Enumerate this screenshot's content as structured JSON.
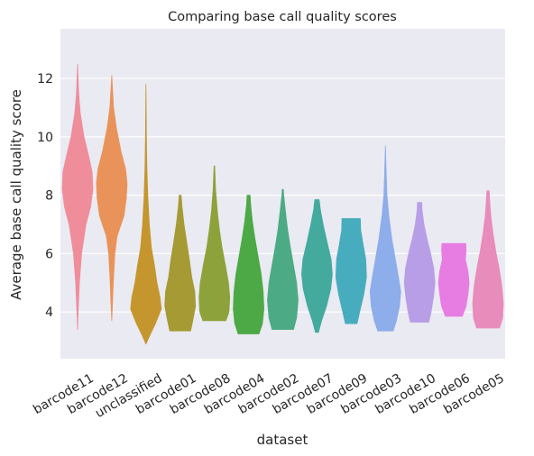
{
  "chart_data": {
    "type": "violin",
    "title": "Comparing base call quality scores",
    "xlabel": "dataset",
    "ylabel": "Average base call quality score",
    "ylim": [
      2.4,
      13.7
    ],
    "yticks": [
      4,
      6,
      8,
      10,
      12
    ],
    "grid": true,
    "categories": [
      "barcode11",
      "barcode12",
      "unclassified",
      "barcode01",
      "barcode08",
      "barcode04",
      "barcode02",
      "barcode07",
      "barcode09",
      "barcode03",
      "barcode10",
      "barcode06",
      "barcode05"
    ],
    "colors": [
      "#ef8d9b",
      "#e9935a",
      "#c4962d",
      "#a59a33",
      "#8da23a",
      "#4ca946",
      "#4cab84",
      "#44aa9e",
      "#47acbd",
      "#8dadeb",
      "#b89ee7",
      "#e77de3",
      "#e88cbb"
    ],
    "series": [
      {
        "min": 3.4,
        "max": 12.5,
        "profile": [
          [
            3.4,
            0.0
          ],
          [
            4.0,
            0.04
          ],
          [
            5.0,
            0.12
          ],
          [
            6.0,
            0.26
          ],
          [
            7.0,
            0.55
          ],
          [
            7.6,
            0.85
          ],
          [
            8.2,
            1.0
          ],
          [
            8.8,
            0.95
          ],
          [
            9.4,
            0.7
          ],
          [
            10.0,
            0.42
          ],
          [
            10.8,
            0.18
          ],
          [
            11.5,
            0.07
          ],
          [
            12.5,
            0.0
          ]
        ]
      },
      {
        "min": 3.7,
        "max": 12.1,
        "profile": [
          [
            3.7,
            0.0
          ],
          [
            4.3,
            0.05
          ],
          [
            5.0,
            0.1
          ],
          [
            6.0,
            0.2
          ],
          [
            6.6,
            0.35
          ],
          [
            7.3,
            0.8
          ],
          [
            7.9,
            0.95
          ],
          [
            8.4,
            1.0
          ],
          [
            8.9,
            0.9
          ],
          [
            9.5,
            0.6
          ],
          [
            10.3,
            0.3
          ],
          [
            11.0,
            0.12
          ],
          [
            12.1,
            0.0
          ]
        ]
      },
      {
        "min": 2.9,
        "max": 11.8,
        "profile": [
          [
            2.9,
            0.0
          ],
          [
            3.2,
            0.25
          ],
          [
            3.6,
            0.62
          ],
          [
            4.1,
            1.0
          ],
          [
            4.5,
            0.92
          ],
          [
            5.0,
            0.72
          ],
          [
            5.6,
            0.55
          ],
          [
            6.2,
            0.35
          ],
          [
            7.0,
            0.22
          ],
          [
            8.0,
            0.12
          ],
          [
            9.0,
            0.06
          ],
          [
            10.0,
            0.03
          ],
          [
            11.8,
            0.0
          ]
        ]
      },
      {
        "min": 3.35,
        "max": 8.0,
        "profile": [
          [
            3.35,
            0.68
          ],
          [
            3.7,
            0.82
          ],
          [
            4.2,
            1.0
          ],
          [
            4.7,
            0.95
          ],
          [
            5.2,
            0.75
          ],
          [
            5.8,
            0.6
          ],
          [
            6.4,
            0.42
          ],
          [
            7.0,
            0.25
          ],
          [
            7.6,
            0.12
          ],
          [
            8.0,
            0.06
          ]
        ]
      },
      {
        "min": 3.7,
        "max": 9.0,
        "profile": [
          [
            3.7,
            0.75
          ],
          [
            4.0,
            0.95
          ],
          [
            4.5,
            1.0
          ],
          [
            5.0,
            0.92
          ],
          [
            5.6,
            0.72
          ],
          [
            6.2,
            0.5
          ],
          [
            6.8,
            0.33
          ],
          [
            7.4,
            0.2
          ],
          [
            8.2,
            0.08
          ],
          [
            9.0,
            0.02
          ]
        ]
      },
      {
        "min": 3.25,
        "max": 8.0,
        "profile": [
          [
            3.25,
            0.68
          ],
          [
            3.6,
            0.9
          ],
          [
            4.1,
            1.0
          ],
          [
            4.7,
            0.95
          ],
          [
            5.3,
            0.82
          ],
          [
            5.9,
            0.62
          ],
          [
            6.5,
            0.42
          ],
          [
            7.1,
            0.25
          ],
          [
            7.7,
            0.13
          ],
          [
            8.0,
            0.1
          ]
        ]
      },
      {
        "min": 3.4,
        "max": 8.2,
        "profile": [
          [
            3.4,
            0.7
          ],
          [
            3.8,
            0.9
          ],
          [
            4.4,
            1.0
          ],
          [
            5.0,
            0.9
          ],
          [
            5.6,
            0.7
          ],
          [
            6.2,
            0.5
          ],
          [
            6.8,
            0.32
          ],
          [
            7.4,
            0.18
          ],
          [
            8.0,
            0.06
          ],
          [
            8.2,
            0.04
          ]
        ]
      },
      {
        "min": 3.3,
        "max": 7.85,
        "profile": [
          [
            3.3,
            0.1
          ],
          [
            3.7,
            0.3
          ],
          [
            4.2,
            0.62
          ],
          [
            4.8,
            0.9
          ],
          [
            5.3,
            1.0
          ],
          [
            5.8,
            0.92
          ],
          [
            6.4,
            0.65
          ],
          [
            7.0,
            0.4
          ],
          [
            7.5,
            0.22
          ],
          [
            7.85,
            0.14
          ]
        ]
      },
      {
        "min": 3.6,
        "max": 7.2,
        "profile": [
          [
            3.6,
            0.38
          ],
          [
            4.0,
            0.55
          ],
          [
            4.6,
            0.82
          ],
          [
            5.2,
            1.0
          ],
          [
            5.8,
            0.95
          ],
          [
            6.3,
            0.78
          ],
          [
            6.8,
            0.62
          ],
          [
            7.2,
            0.6
          ]
        ]
      },
      {
        "min": 3.35,
        "max": 9.7,
        "profile": [
          [
            3.35,
            0.5
          ],
          [
            3.7,
            0.72
          ],
          [
            4.2,
            0.92
          ],
          [
            4.7,
            1.0
          ],
          [
            5.2,
            0.85
          ],
          [
            5.8,
            0.65
          ],
          [
            6.5,
            0.42
          ],
          [
            7.3,
            0.22
          ],
          [
            8.0,
            0.1
          ],
          [
            9.0,
            0.04
          ],
          [
            9.7,
            0.0
          ]
        ]
      },
      {
        "min": 3.65,
        "max": 7.75,
        "profile": [
          [
            3.65,
            0.6
          ],
          [
            4.0,
            0.75
          ],
          [
            4.5,
            0.9
          ],
          [
            5.0,
            1.0
          ],
          [
            5.5,
            0.92
          ],
          [
            6.0,
            0.72
          ],
          [
            6.5,
            0.48
          ],
          [
            7.0,
            0.28
          ],
          [
            7.5,
            0.16
          ],
          [
            7.75,
            0.14
          ]
        ]
      },
      {
        "min": 3.85,
        "max": 6.35,
        "profile": [
          [
            3.85,
            0.55
          ],
          [
            4.2,
            0.8
          ],
          [
            4.6,
            0.92
          ],
          [
            5.0,
            1.0
          ],
          [
            5.4,
            0.92
          ],
          [
            5.8,
            0.75
          ],
          [
            6.1,
            0.8
          ],
          [
            6.35,
            0.78
          ]
        ]
      },
      {
        "min": 3.45,
        "max": 8.15,
        "profile": [
          [
            3.45,
            0.75
          ],
          [
            3.8,
            0.95
          ],
          [
            4.3,
            1.0
          ],
          [
            4.9,
            0.9
          ],
          [
            5.5,
            0.72
          ],
          [
            6.1,
            0.5
          ],
          [
            6.7,
            0.32
          ],
          [
            7.3,
            0.18
          ],
          [
            7.9,
            0.1
          ],
          [
            8.15,
            0.08
          ]
        ]
      }
    ]
  }
}
